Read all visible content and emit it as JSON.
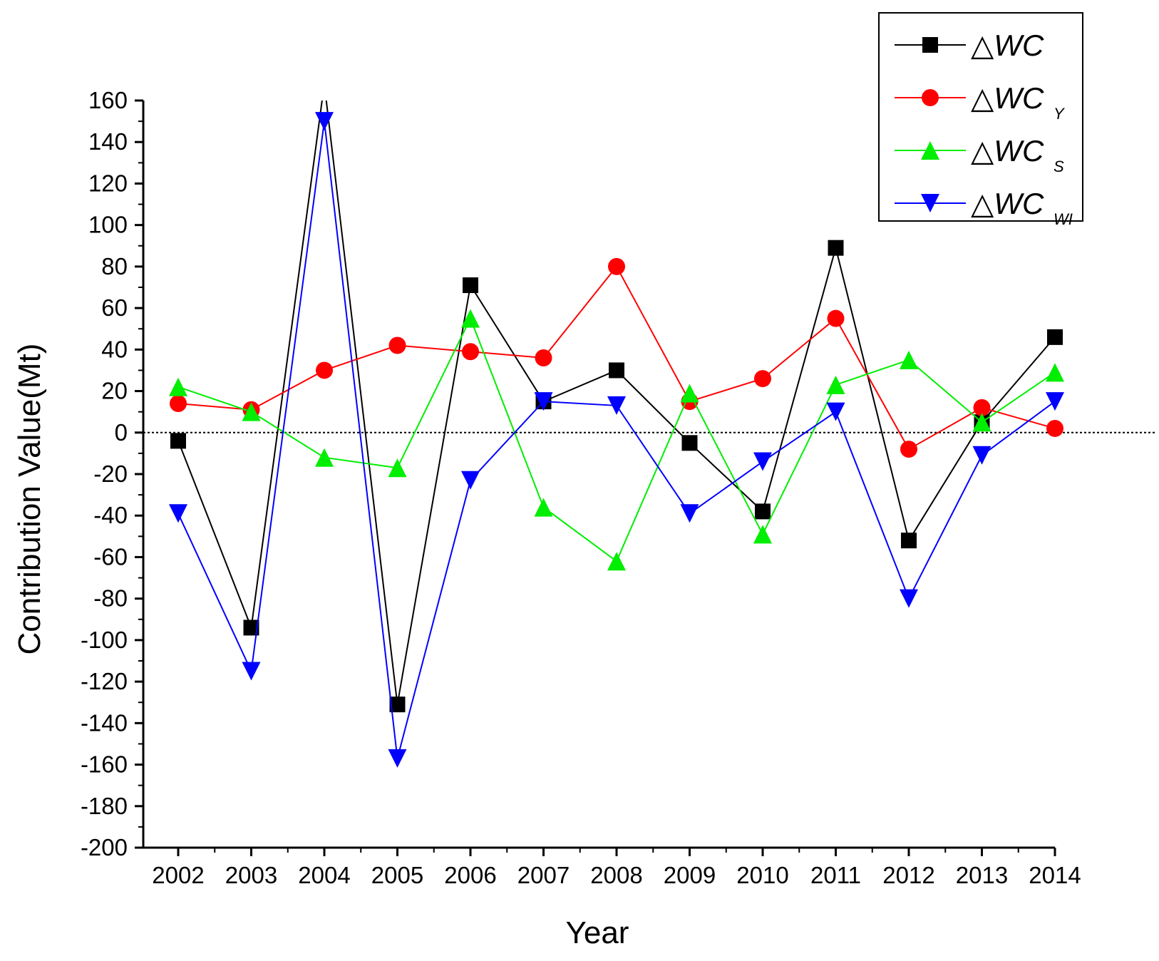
{
  "chart_data": {
    "type": "line",
    "title": "",
    "xlabel": "Year",
    "ylabel": "Contribution Value(Mt)",
    "ylim": [
      -200,
      160
    ],
    "ytick_step": 20,
    "x": [
      2002,
      2003,
      2004,
      2005,
      2006,
      2007,
      2008,
      2009,
      2010,
      2011,
      2012,
      2013,
      2014
    ],
    "reference_line": 0,
    "legend_position": "top-right",
    "series": [
      {
        "name": "△WC",
        "base": "△WC",
        "sub": "",
        "color": "#000000",
        "marker": "square",
        "values": [
          -4,
          -94,
          168,
          -131,
          71,
          15,
          30,
          -5,
          -38,
          89,
          -52,
          5,
          46
        ]
      },
      {
        "name": "△WC_Y",
        "base": "△WC",
        "sub": "Y",
        "color": "#ff0000",
        "marker": "circle",
        "values": [
          14,
          11,
          30,
          42,
          39,
          36,
          80,
          15,
          26,
          55,
          -8,
          12,
          2
        ]
      },
      {
        "name": "△WC_S",
        "base": "△WC",
        "sub": "S",
        "color": "#00ee00",
        "marker": "triangle-up",
        "values": [
          22,
          10,
          -12,
          -17,
          55,
          -36,
          -62,
          19,
          -49,
          23,
          35,
          5,
          29
        ]
      },
      {
        "name": "△WC_WI",
        "base": "△WC",
        "sub": "WI",
        "color": "#0000ff",
        "marker": "triangle-down",
        "values": [
          -39,
          -115,
          150,
          -157,
          -23,
          15,
          13,
          -39,
          -14,
          10,
          -80,
          -11,
          15
        ]
      }
    ]
  }
}
